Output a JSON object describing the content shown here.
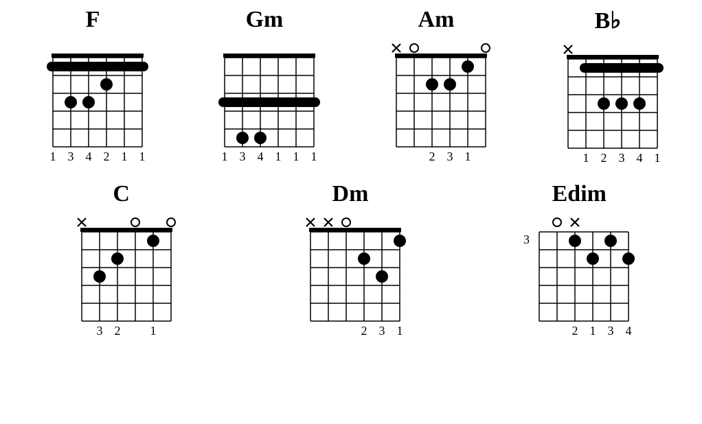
{
  "style": {
    "background_color": "#ffffff",
    "line_color": "#000000",
    "font_family": "Times New Roman",
    "name_fontsize": 34,
    "name_fontweight": "bold",
    "fingering_fontsize": 18,
    "position_fontsize": 18,
    "strings": 6,
    "frets": 5,
    "string_spacing": 26,
    "fret_spacing": 26,
    "dot_radius": 9,
    "barre_height": 14,
    "nut_thickness": 6,
    "line_width": 1.5
  },
  "rows": [
    [
      {
        "name": "F",
        "nut_visible": true,
        "position_label": "",
        "markers": [
          "",
          "",
          "",
          "",
          "",
          ""
        ],
        "barres": [
          {
            "fret": 1,
            "from": 1,
            "to": 6
          }
        ],
        "dots": [
          {
            "string": 3,
            "fret": 2
          },
          {
            "string": 5,
            "fret": 3
          },
          {
            "string": 4,
            "fret": 3
          }
        ],
        "fingering": [
          "1",
          "3",
          "4",
          "2",
          "1",
          "1"
        ]
      },
      {
        "name": "Gm",
        "nut_visible": true,
        "position_label": "",
        "markers": [
          "",
          "",
          "",
          "",
          "",
          ""
        ],
        "barres": [
          {
            "fret": 3,
            "from": 1,
            "to": 6
          }
        ],
        "dots": [
          {
            "string": 5,
            "fret": 5
          },
          {
            "string": 4,
            "fret": 5
          }
        ],
        "fingering": [
          "1",
          "3",
          "4",
          "1",
          "1",
          "1"
        ]
      },
      {
        "name": "Am",
        "nut_visible": true,
        "position_label": "",
        "markers": [
          "x",
          "o",
          "",
          "",
          "",
          "o"
        ],
        "barres": [],
        "dots": [
          {
            "string": 4,
            "fret": 2
          },
          {
            "string": 3,
            "fret": 2
          },
          {
            "string": 2,
            "fret": 1
          }
        ],
        "fingering": [
          "",
          "",
          "2",
          "3",
          "1",
          ""
        ]
      },
      {
        "name": "B♭",
        "nut_visible": true,
        "position_label": "",
        "markers": [
          "x",
          "",
          "",
          "",
          "",
          ""
        ],
        "barres": [
          {
            "fret": 1,
            "from": 1,
            "to": 5
          }
        ],
        "dots": [
          {
            "string": 4,
            "fret": 3
          },
          {
            "string": 3,
            "fret": 3
          },
          {
            "string": 2,
            "fret": 3
          }
        ],
        "fingering": [
          "",
          "1",
          "2",
          "3",
          "4",
          "1"
        ]
      }
    ],
    [
      {
        "name": "C",
        "nut_visible": true,
        "position_label": "",
        "markers": [
          "x",
          "",
          "",
          "o",
          "",
          "o"
        ],
        "barres": [],
        "dots": [
          {
            "string": 5,
            "fret": 3
          },
          {
            "string": 4,
            "fret": 2
          },
          {
            "string": 2,
            "fret": 1
          }
        ],
        "fingering": [
          "",
          "3",
          "2",
          "",
          "1",
          ""
        ]
      },
      {
        "name": "Dm",
        "nut_visible": true,
        "position_label": "",
        "markers": [
          "x",
          "x",
          "o",
          "",
          "",
          ""
        ],
        "barres": [],
        "dots": [
          {
            "string": 3,
            "fret": 2
          },
          {
            "string": 2,
            "fret": 3
          },
          {
            "string": 1,
            "fret": 1
          }
        ],
        "fingering": [
          "",
          "",
          "",
          "2",
          "3",
          "1"
        ]
      },
      {
        "name": "Edim",
        "nut_visible": false,
        "position_label": "3",
        "markers": [
          "",
          "o",
          "x",
          "",
          "",
          ""
        ],
        "barres": [],
        "dots": [
          {
            "string": 4,
            "fret": 3
          },
          {
            "string": 3,
            "fret": 4
          },
          {
            "string": 2,
            "fret": 3
          },
          {
            "string": 1,
            "fret": 4
          }
        ],
        "fingering": [
          "",
          "",
          "2",
          "1",
          "3",
          "4"
        ]
      }
    ]
  ]
}
